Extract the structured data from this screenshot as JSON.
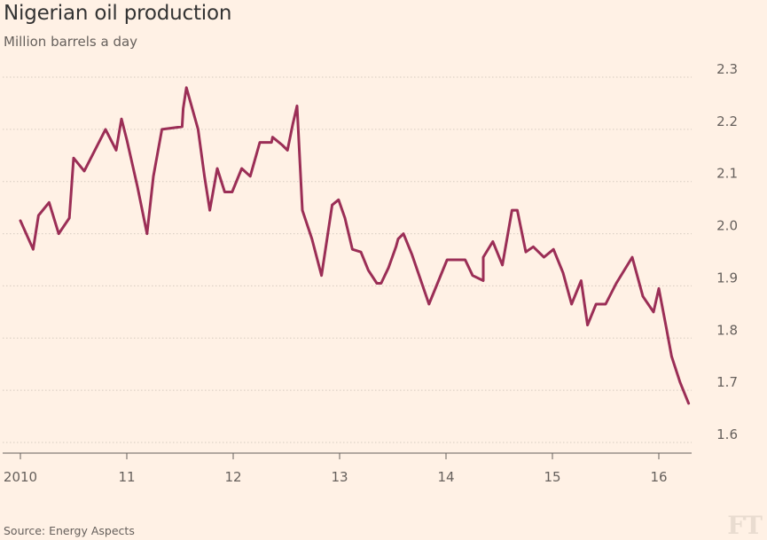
{
  "chart_data": {
    "type": "line",
    "title": "Nigerian oil production",
    "subtitle": "Million barrels a day",
    "source": "Source: Energy Aspects",
    "logo": "FT",
    "line_color": "#9b2e56",
    "ylim": [
      1.6,
      2.3
    ],
    "yticks": [
      "2.3",
      "2.2",
      "2.1",
      "2.0",
      "1.9",
      "1.8",
      "1.7",
      "1.6"
    ],
    "xlim": [
      2010,
      2016.5
    ],
    "xticks": [
      {
        "year": 2010,
        "label": "2010"
      },
      {
        "year": 2011,
        "label": "11"
      },
      {
        "year": 2012,
        "label": "12"
      },
      {
        "year": 2013,
        "label": "13"
      },
      {
        "year": 2014,
        "label": "14"
      },
      {
        "year": 2015,
        "label": "15"
      },
      {
        "year": 2016,
        "label": "16"
      }
    ],
    "grid": true,
    "series": [
      {
        "x": [
          2010.0,
          2010.12,
          2010.17,
          2010.27,
          2010.36,
          2010.46,
          2010.5,
          2010.6,
          2010.8,
          2010.9,
          2010.95,
          2011.0,
          2011.1,
          2011.19,
          2011.25,
          2011.33,
          2011.52,
          2011.53,
          2011.56,
          2011.67,
          2011.73,
          2011.78,
          2011.85,
          2011.92,
          2011.99,
          2012.08,
          2012.16,
          2012.25,
          2012.36,
          2012.37,
          2012.46,
          2012.51,
          2012.56,
          2012.6,
          2012.65,
          2012.74,
          2012.83,
          2012.93,
          2012.99,
          2013.05,
          2013.12,
          2013.2,
          2013.27,
          2013.35,
          2013.39,
          2013.46,
          2013.53,
          2013.55,
          2013.6,
          2013.68,
          2013.84,
          2014.01,
          2014.18,
          2014.25,
          2014.35,
          2014.35,
          2014.44,
          2014.53,
          2014.62,
          2014.67,
          2014.75,
          2014.82,
          2014.92,
          2015.01,
          2015.1,
          2015.18,
          2015.27,
          2015.33,
          2015.41,
          2015.5,
          2015.6,
          2015.75,
          2015.85,
          2015.95,
          2016.0,
          2016.07,
          2016.12,
          2016.2,
          2016.28
        ],
        "values": [
          2.025,
          1.97,
          2.035,
          2.06,
          2.0,
          2.03,
          2.145,
          2.12,
          2.2,
          2.16,
          2.22,
          2.18,
          2.09,
          2.0,
          2.11,
          2.2,
          2.205,
          2.24,
          2.28,
          2.2,
          2.11,
          2.045,
          2.125,
          2.08,
          2.08,
          2.125,
          2.11,
          2.175,
          2.175,
          2.185,
          2.17,
          2.16,
          2.21,
          2.245,
          2.045,
          1.99,
          1.92,
          2.055,
          2.065,
          2.03,
          1.97,
          1.965,
          1.93,
          1.905,
          1.905,
          1.935,
          1.975,
          1.99,
          2.0,
          1.96,
          1.865,
          1.95,
          1.95,
          1.92,
          1.91,
          1.955,
          1.985,
          1.94,
          2.045,
          2.045,
          1.965,
          1.975,
          1.955,
          1.97,
          1.925,
          1.865,
          1.91,
          1.825,
          1.865,
          1.865,
          1.905,
          1.955,
          1.88,
          1.85,
          1.895,
          1.82,
          1.765,
          1.715,
          1.675
        ]
      }
    ]
  }
}
